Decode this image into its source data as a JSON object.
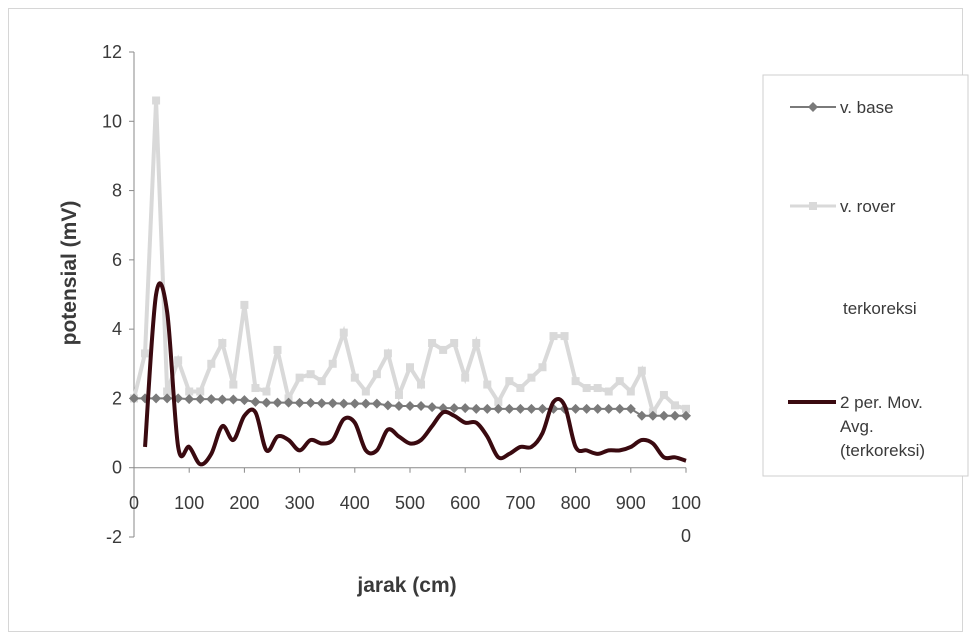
{
  "chart_data": {
    "type": "line",
    "title": "",
    "xlabel": "jarak (cm)",
    "ylabel": "potensial (mV)",
    "xlim": [
      0,
      1000
    ],
    "ylim": [
      -2,
      12
    ],
    "grid": false,
    "legend_position": "right",
    "x_tick_labels": [
      "0",
      "100",
      "200",
      "300",
      "400",
      "500",
      "600",
      "700",
      "800",
      "900",
      "100\n0"
    ],
    "y_tick_labels": [
      "-2",
      "0",
      "2",
      "4",
      "6",
      "8",
      "10",
      "12"
    ],
    "x_ticks": [
      0,
      100,
      200,
      300,
      400,
      500,
      600,
      700,
      800,
      900,
      1000
    ],
    "y_ticks": [
      -2,
      0,
      2,
      4,
      6,
      8,
      10,
      12
    ],
    "series": [
      {
        "name": "v. base",
        "color": "#7a7a7a",
        "marker": "diamond",
        "x": [
          0,
          20,
          40,
          60,
          80,
          100,
          120,
          140,
          160,
          180,
          200,
          220,
          240,
          260,
          280,
          300,
          320,
          340,
          360,
          380,
          400,
          420,
          440,
          460,
          480,
          500,
          520,
          540,
          560,
          580,
          600,
          620,
          640,
          660,
          680,
          700,
          720,
          740,
          760,
          780,
          800,
          820,
          840,
          860,
          880,
          900,
          920,
          940,
          960,
          980,
          1000
        ],
        "y": [
          2.0,
          2.0,
          2.0,
          2.0,
          2.0,
          1.98,
          1.98,
          1.98,
          1.97,
          1.97,
          1.95,
          1.9,
          1.88,
          1.88,
          1.88,
          1.87,
          1.87,
          1.86,
          1.86,
          1.85,
          1.85,
          1.85,
          1.85,
          1.8,
          1.78,
          1.78,
          1.78,
          1.75,
          1.72,
          1.72,
          1.72,
          1.7,
          1.7,
          1.7,
          1.7,
          1.7,
          1.7,
          1.7,
          1.7,
          1.7,
          1.7,
          1.7,
          1.7,
          1.7,
          1.7,
          1.7,
          1.5,
          1.5,
          1.5,
          1.5,
          1.5
        ]
      },
      {
        "name": "v. rover",
        "color": "#d9d9d9",
        "marker": "square",
        "x": [
          0,
          20,
          40,
          60,
          80,
          100,
          120,
          140,
          160,
          180,
          200,
          220,
          240,
          260,
          280,
          300,
          320,
          340,
          360,
          380,
          400,
          420,
          440,
          460,
          480,
          500,
          520,
          540,
          560,
          580,
          600,
          620,
          640,
          660,
          680,
          700,
          720,
          740,
          760,
          780,
          800,
          820,
          840,
          860,
          880,
          900,
          920,
          940,
          960,
          980,
          1000
        ],
        "y": [
          2.0,
          3.3,
          10.6,
          2.2,
          3.1,
          2.2,
          2.2,
          3.0,
          3.6,
          2.4,
          4.7,
          2.3,
          2.2,
          3.4,
          2.0,
          2.6,
          2.7,
          2.5,
          3.0,
          3.9,
          2.6,
          2.2,
          2.7,
          3.3,
          2.1,
          2.9,
          2.4,
          3.6,
          3.4,
          3.6,
          2.6,
          3.6,
          2.4,
          1.9,
          2.5,
          2.3,
          2.6,
          2.9,
          3.8,
          3.8,
          2.5,
          2.3,
          2.3,
          2.2,
          2.5,
          2.2,
          2.8,
          1.6,
          2.1,
          1.8,
          1.7
        ]
      },
      {
        "name": "terkoreksi",
        "color": "#ffffff",
        "marker": "none",
        "x": [],
        "y": []
      },
      {
        "name": "2 per. Mov. Avg. (terkoreksi)",
        "color": "#3a0a10",
        "marker": "none",
        "x": [
          20,
          40,
          60,
          80,
          100,
          120,
          140,
          160,
          180,
          200,
          220,
          240,
          260,
          280,
          300,
          320,
          340,
          360,
          380,
          400,
          420,
          440,
          460,
          480,
          500,
          520,
          540,
          560,
          580,
          600,
          620,
          640,
          660,
          680,
          700,
          720,
          740,
          760,
          780,
          800,
          820,
          840,
          860,
          880,
          900,
          920,
          940,
          960,
          980,
          1000
        ],
        "y": [
          0.6,
          5.0,
          4.5,
          0.6,
          0.6,
          0.1,
          0.4,
          1.2,
          0.8,
          1.5,
          1.6,
          0.5,
          0.9,
          0.8,
          0.5,
          0.8,
          0.7,
          0.8,
          1.4,
          1.3,
          0.5,
          0.5,
          1.1,
          0.9,
          0.7,
          0.8,
          1.2,
          1.6,
          1.5,
          1.3,
          1.3,
          0.9,
          0.3,
          0.4,
          0.6,
          0.6,
          1.0,
          1.9,
          1.8,
          0.6,
          0.5,
          0.4,
          0.5,
          0.5,
          0.6,
          0.8,
          0.7,
          0.3,
          0.3,
          0.2
        ]
      }
    ],
    "legend": [
      "v. base",
      "v. rover",
      "terkoreksi",
      "2 per. Mov.\nAvg.\n(terkoreksi)"
    ]
  }
}
